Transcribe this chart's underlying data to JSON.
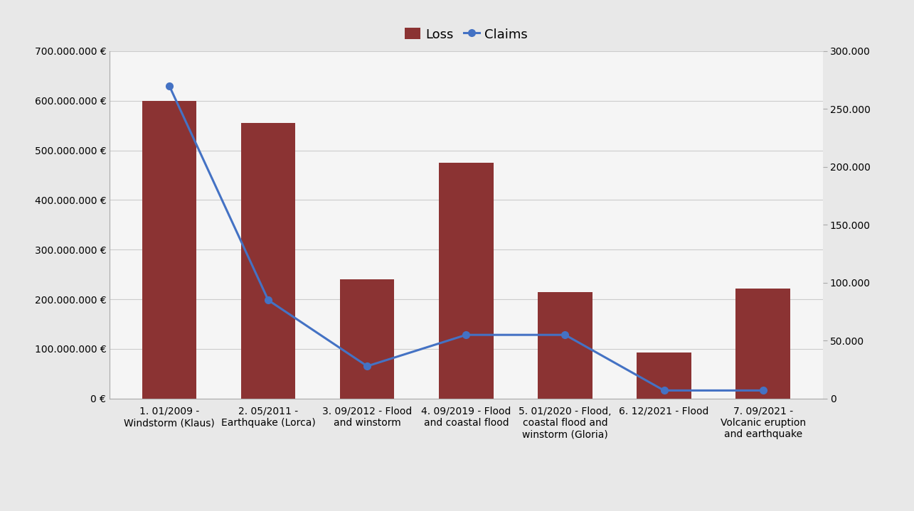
{
  "categories": [
    "1. 01/2009 -\nWindstorm (Klaus)",
    "2. 05/2011 -\nEarthquake (Lorca)",
    "3. 09/2012 - Flood\nand winstorm",
    "4. 09/2019 - Flood\nand coastal flood",
    "5. 01/2020 - Flood,\ncoastal flood and\nwinstorm (Gloria)",
    "6. 12/2021 - Flood",
    "7. 09/2021 -\nVolcanic eruption\nand earthquake"
  ],
  "loss_values": [
    600000000,
    555000000,
    240000000,
    475000000,
    215000000,
    93000000,
    222000000
  ],
  "claims_values": [
    270000,
    85000,
    28000,
    55000,
    55000,
    7000,
    7000
  ],
  "bar_color": "#8B3333",
  "line_color": "#4472C4",
  "background_color": "#E8E8E8",
  "plot_background": "#F5F5F5",
  "left_ylim": [
    0,
    700000000
  ],
  "right_ylim": [
    0,
    300000
  ],
  "left_yticks": [
    0,
    100000000,
    200000000,
    300000000,
    400000000,
    500000000,
    600000000,
    700000000
  ],
  "right_yticks": [
    0,
    50000,
    100000,
    150000,
    200000,
    250000,
    300000
  ],
  "legend_loss": "Loss",
  "legend_claims": "Claims",
  "marker_size": 7,
  "line_width": 2.2,
  "grid_color": "#CCCCCC",
  "tick_label_fontsize": 10,
  "legend_fontsize": 13
}
